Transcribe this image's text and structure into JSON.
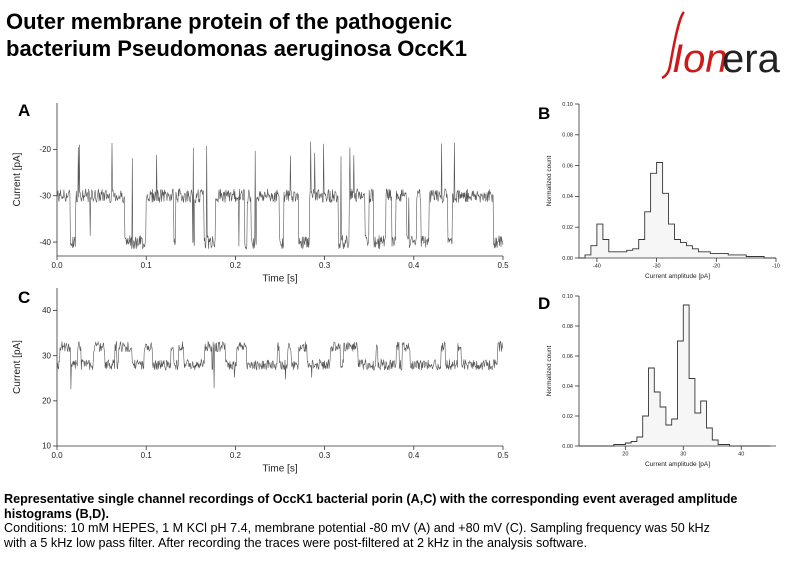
{
  "title_line1": "Outer membrane protein of the pathogenic",
  "title_line2": "bacterium Pseudomonas aeruginosa OccK1",
  "logo": {
    "part1": "Ion",
    "part2": "era",
    "accent": "#cc1a1a"
  },
  "panels": {
    "a": "A",
    "b": "B",
    "c": "C",
    "d": "D"
  },
  "caption": {
    "bold": "Representative single channel recordings of OccK1 bacterial porin  (A,C) with the corresponding event averaged amplitude histograms (B,D).",
    "line1": "Conditions: 10 mM HEPES, 1 M KCl pH 7.4, membrane potential -80 mV (A) and +80 mV (C).  Sampling frequency was 50 kHz",
    "line2": "with a 5 kHz low pass filter. After recording the traces were post-filtered at 2 kHz in the analysis software."
  },
  "chart_data": [
    {
      "type": "line",
      "panel": "A",
      "xlabel": "Time [s]",
      "ylabel": "Current [pA]",
      "xlim": [
        0,
        0.5
      ],
      "ylim": [
        -43,
        -10
      ],
      "xticks": [
        "0.0",
        "0.1",
        "0.2",
        "0.3",
        "0.4",
        "0.5"
      ],
      "xtick_values": [
        0,
        0.1,
        0.2,
        0.3,
        0.4,
        0.5
      ],
      "yticks": [
        "-20",
        "-30",
        "-40"
      ],
      "ytick_values": [
        -20,
        -30,
        -40
      ],
      "baseline": -30,
      "noise": 1.5,
      "upper_level": -40,
      "spike_level": -20,
      "grid": false,
      "color": "#555555"
    },
    {
      "type": "line",
      "panel": "C",
      "xlabel": "Time [s]",
      "ylabel": "Current [pA]",
      "xlim": [
        0,
        0.5
      ],
      "ylim": [
        10,
        45
      ],
      "xticks": [
        "0.0",
        "0.1",
        "0.2",
        "0.3",
        "0.4",
        "0.5"
      ],
      "xtick_values": [
        0,
        0.1,
        0.2,
        0.3,
        0.4,
        0.5
      ],
      "yticks": [
        "10",
        "20",
        "30",
        "40"
      ],
      "ytick_values": [
        10,
        20,
        30,
        40
      ],
      "baseline": 28,
      "noise": 1.2,
      "upper_level": 32,
      "spike_level": 24,
      "grid": false,
      "color": "#555555"
    },
    {
      "type": "area",
      "panel": "B",
      "xlabel": "Current amplitude [pA]",
      "ylabel": "Normalized count",
      "xlim": [
        -43,
        -10
      ],
      "ylim": [
        0,
        0.1
      ],
      "xticks": [
        "-40",
        "-30",
        "-20",
        "-10"
      ],
      "xtick_values": [
        -40,
        -30,
        -20,
        -10
      ],
      "yticks": [
        "0.00",
        "0.02",
        "0.04",
        "0.06",
        "0.08",
        "0.10"
      ],
      "ytick_values": [
        0,
        0.02,
        0.04,
        0.06,
        0.08,
        0.1
      ],
      "x": [
        -43,
        -42,
        -41,
        -40,
        -39,
        -38,
        -37,
        -36,
        -35,
        -34,
        -33,
        -32,
        -31,
        -30,
        -29,
        -28,
        -27,
        -26,
        -25,
        -24,
        -23,
        -22,
        -21,
        -20,
        -19,
        -18,
        -17,
        -16,
        -15,
        -14,
        -13,
        -12,
        -11
      ],
      "y": [
        0.0,
        0.002,
        0.008,
        0.022,
        0.012,
        0.004,
        0.004,
        0.004,
        0.005,
        0.006,
        0.012,
        0.03,
        0.055,
        0.062,
        0.042,
        0.022,
        0.012,
        0.01,
        0.008,
        0.006,
        0.004,
        0.004,
        0.003,
        0.003,
        0.003,
        0.002,
        0.002,
        0.002,
        0.001,
        0.001,
        0.001,
        0.0,
        0.0
      ],
      "grid": false
    },
    {
      "type": "area",
      "panel": "D",
      "xlabel": "Current amplitude [pA]",
      "ylabel": "Normalized count",
      "xlim": [
        12,
        46
      ],
      "ylim": [
        0,
        0.1
      ],
      "xticks": [
        "20",
        "30",
        "40"
      ],
      "xtick_values": [
        20,
        30,
        40
      ],
      "yticks": [
        "0.00",
        "0.02",
        "0.04",
        "0.06",
        "0.08",
        "0.10"
      ],
      "ytick_values": [
        0,
        0.02,
        0.04,
        0.06,
        0.08,
        0.1
      ],
      "x": [
        12,
        14,
        16,
        18,
        20,
        21,
        22,
        23,
        24,
        25,
        26,
        27,
        28,
        29,
        30,
        31,
        32,
        33,
        34,
        35,
        36,
        38,
        40,
        42,
        44
      ],
      "y": [
        0.0,
        0.0,
        0.0,
        0.001,
        0.002,
        0.003,
        0.006,
        0.02,
        0.052,
        0.036,
        0.026,
        0.014,
        0.018,
        0.07,
        0.094,
        0.045,
        0.022,
        0.03,
        0.012,
        0.004,
        0.001,
        0.0,
        0.0,
        0.0,
        0.0
      ],
      "grid": false
    }
  ]
}
